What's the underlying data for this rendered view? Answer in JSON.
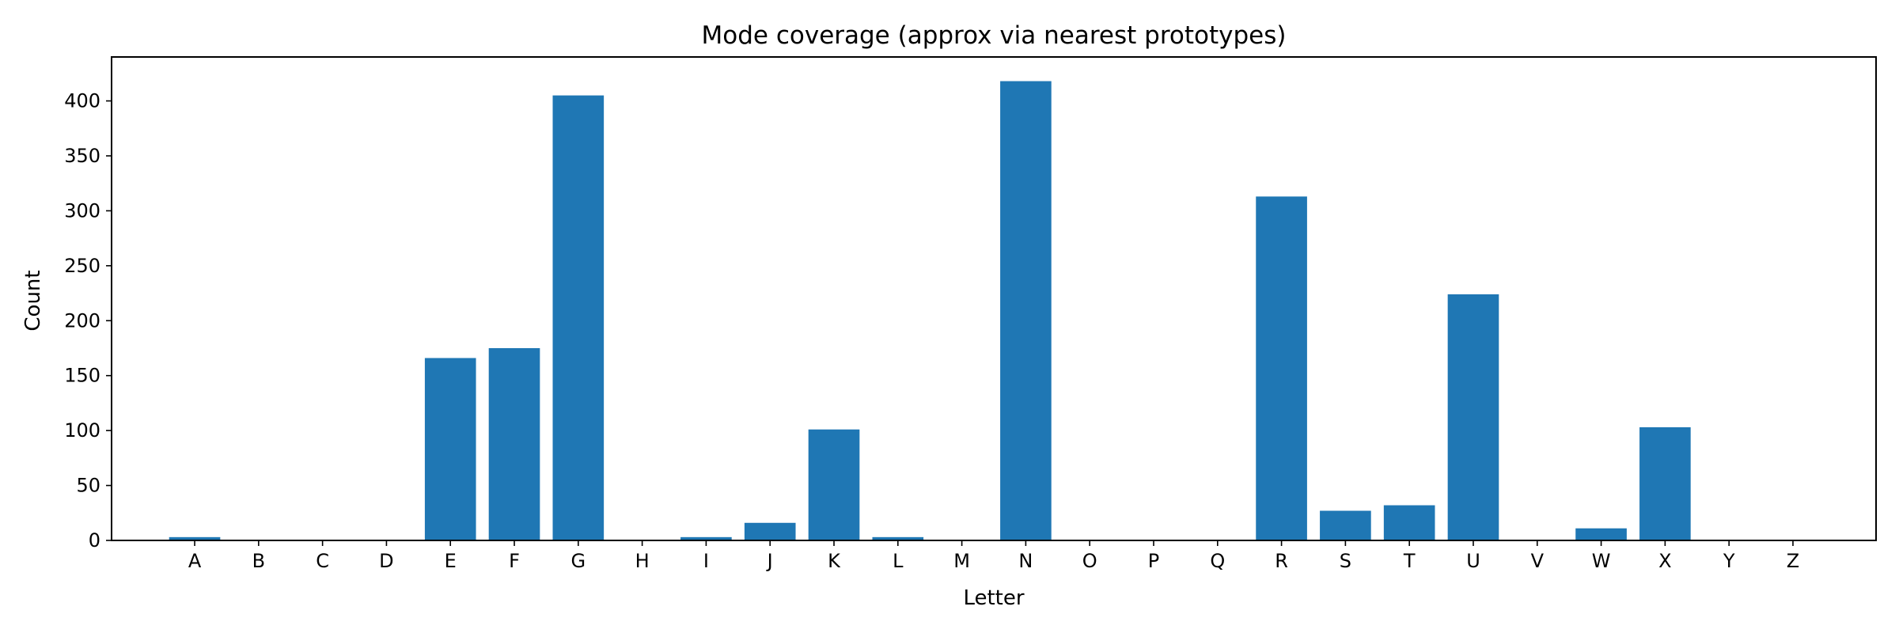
{
  "chart_data": {
    "type": "bar",
    "title": "Mode coverage (approx via nearest prototypes)",
    "xlabel": "Letter",
    "ylabel": "Count",
    "categories": [
      "A",
      "B",
      "C",
      "D",
      "E",
      "F",
      "G",
      "H",
      "I",
      "J",
      "K",
      "L",
      "M",
      "N",
      "O",
      "P",
      "Q",
      "R",
      "S",
      "T",
      "U",
      "V",
      "W",
      "X",
      "Y",
      "Z"
    ],
    "values": [
      3,
      0,
      0,
      0,
      166,
      175,
      405,
      0,
      3,
      16,
      101,
      3,
      0,
      418,
      0,
      0,
      0,
      313,
      27,
      32,
      224,
      0,
      11,
      103,
      0,
      0
    ],
    "ylim": [
      0,
      440
    ],
    "yticks": [
      0,
      50,
      100,
      150,
      200,
      250,
      300,
      350,
      400
    ],
    "bar_color": "#1f77b4",
    "grid": false,
    "legend": "none"
  }
}
